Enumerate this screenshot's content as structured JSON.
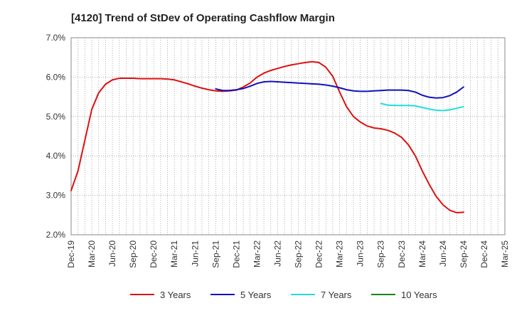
{
  "chart_data": {
    "type": "line",
    "title": "[4120]  Trend of StDev of Operating Cashflow Margin",
    "xlabel": "",
    "ylabel": "",
    "x_ticks": [
      "Dec-19",
      "Mar-20",
      "Jun-20",
      "Sep-20",
      "Dec-20",
      "Mar-21",
      "Jun-21",
      "Sep-21",
      "Dec-21",
      "Mar-22",
      "Jun-22",
      "Sep-22",
      "Dec-22",
      "Mar-23",
      "Jun-23",
      "Sep-23",
      "Dec-23",
      "Mar-24",
      "Jun-24",
      "Sep-24",
      "Dec-24",
      "Mar-25"
    ],
    "y_ticks": [
      "2.0%",
      "3.0%",
      "4.0%",
      "5.0%",
      "6.0%",
      "7.0%"
    ],
    "ylim": [
      2.0,
      7.0
    ],
    "grid": true,
    "legend_position": "bottom",
    "series": [
      {
        "name": "3 Years",
        "color": "#dd1111",
        "points": [
          [
            "Dec-19",
            3.12
          ],
          [
            "Jan-20",
            3.62
          ],
          [
            "Feb-20",
            4.4
          ],
          [
            "Mar-20",
            5.18
          ],
          [
            "Apr-20",
            5.6
          ],
          [
            "May-20",
            5.82
          ],
          [
            "Jun-20",
            5.93
          ],
          [
            "Jul-20",
            5.97
          ],
          [
            "Aug-20",
            5.97
          ],
          [
            "Sep-20",
            5.97
          ],
          [
            "Oct-20",
            5.96
          ],
          [
            "Nov-20",
            5.96
          ],
          [
            "Dec-20",
            5.96
          ],
          [
            "Jan-21",
            5.96
          ],
          [
            "Feb-21",
            5.95
          ],
          [
            "Mar-21",
            5.93
          ],
          [
            "Apr-21",
            5.88
          ],
          [
            "May-21",
            5.83
          ],
          [
            "Jun-21",
            5.77
          ],
          [
            "Jul-21",
            5.72
          ],
          [
            "Aug-21",
            5.68
          ],
          [
            "Sep-21",
            5.65
          ],
          [
            "Oct-21",
            5.64
          ],
          [
            "Nov-21",
            5.65
          ],
          [
            "Dec-21",
            5.67
          ],
          [
            "Jan-22",
            5.75
          ],
          [
            "Feb-22",
            5.85
          ],
          [
            "Mar-22",
            6.0
          ],
          [
            "Apr-22",
            6.1
          ],
          [
            "May-22",
            6.17
          ],
          [
            "Jun-22",
            6.22
          ],
          [
            "Jul-22",
            6.27
          ],
          [
            "Aug-22",
            6.31
          ],
          [
            "Sep-22",
            6.34
          ],
          [
            "Oct-22",
            6.37
          ],
          [
            "Nov-22",
            6.39
          ],
          [
            "Dec-22",
            6.37
          ],
          [
            "Jan-23",
            6.25
          ],
          [
            "Feb-23",
            6.02
          ],
          [
            "Mar-23",
            5.62
          ],
          [
            "Apr-23",
            5.25
          ],
          [
            "May-23",
            5.0
          ],
          [
            "Jun-23",
            4.86
          ],
          [
            "Jul-23",
            4.76
          ],
          [
            "Aug-23",
            4.71
          ],
          [
            "Sep-23",
            4.69
          ],
          [
            "Oct-23",
            4.65
          ],
          [
            "Nov-23",
            4.58
          ],
          [
            "Dec-23",
            4.47
          ],
          [
            "Jan-24",
            4.28
          ],
          [
            "Feb-24",
            4.0
          ],
          [
            "Mar-24",
            3.62
          ],
          [
            "Apr-24",
            3.28
          ],
          [
            "May-24",
            2.98
          ],
          [
            "Jun-24",
            2.76
          ],
          [
            "Jul-24",
            2.62
          ],
          [
            "Aug-24",
            2.56
          ],
          [
            "Sep-24",
            2.57
          ]
        ]
      },
      {
        "name": "5 Years",
        "color": "#1111bb",
        "points": [
          [
            "Sep-21",
            5.7
          ],
          [
            "Oct-21",
            5.66
          ],
          [
            "Nov-21",
            5.66
          ],
          [
            "Dec-21",
            5.68
          ],
          [
            "Jan-22",
            5.71
          ],
          [
            "Feb-22",
            5.77
          ],
          [
            "Mar-22",
            5.84
          ],
          [
            "Apr-22",
            5.88
          ],
          [
            "May-22",
            5.89
          ],
          [
            "Jun-22",
            5.88
          ],
          [
            "Jul-22",
            5.87
          ],
          [
            "Aug-22",
            5.86
          ],
          [
            "Sep-22",
            5.85
          ],
          [
            "Oct-22",
            5.84
          ],
          [
            "Nov-22",
            5.83
          ],
          [
            "Dec-22",
            5.82
          ],
          [
            "Jan-23",
            5.8
          ],
          [
            "Feb-23",
            5.77
          ],
          [
            "Mar-23",
            5.73
          ],
          [
            "Apr-23",
            5.68
          ],
          [
            "May-23",
            5.65
          ],
          [
            "Jun-23",
            5.64
          ],
          [
            "Jul-23",
            5.64
          ],
          [
            "Aug-23",
            5.65
          ],
          [
            "Sep-23",
            5.66
          ],
          [
            "Oct-23",
            5.67
          ],
          [
            "Nov-23",
            5.67
          ],
          [
            "Dec-23",
            5.67
          ],
          [
            "Jan-24",
            5.66
          ],
          [
            "Feb-24",
            5.62
          ],
          [
            "Mar-24",
            5.54
          ],
          [
            "Apr-24",
            5.49
          ],
          [
            "May-24",
            5.47
          ],
          [
            "Jun-24",
            5.48
          ],
          [
            "Jul-24",
            5.53
          ],
          [
            "Aug-24",
            5.62
          ],
          [
            "Sep-24",
            5.75
          ]
        ]
      },
      {
        "name": "7 Years",
        "color": "#22dddd",
        "points": [
          [
            "Sep-23",
            5.33
          ],
          [
            "Oct-23",
            5.29
          ],
          [
            "Nov-23",
            5.28
          ],
          [
            "Dec-23",
            5.28
          ],
          [
            "Jan-24",
            5.28
          ],
          [
            "Feb-24",
            5.27
          ],
          [
            "Mar-24",
            5.23
          ],
          [
            "Apr-24",
            5.19
          ],
          [
            "May-24",
            5.16
          ],
          [
            "Jun-24",
            5.15
          ],
          [
            "Jul-24",
            5.17
          ],
          [
            "Aug-24",
            5.21
          ],
          [
            "Sep-24",
            5.25
          ]
        ]
      },
      {
        "name": "10 Years",
        "color": "#118811",
        "points": []
      }
    ]
  }
}
